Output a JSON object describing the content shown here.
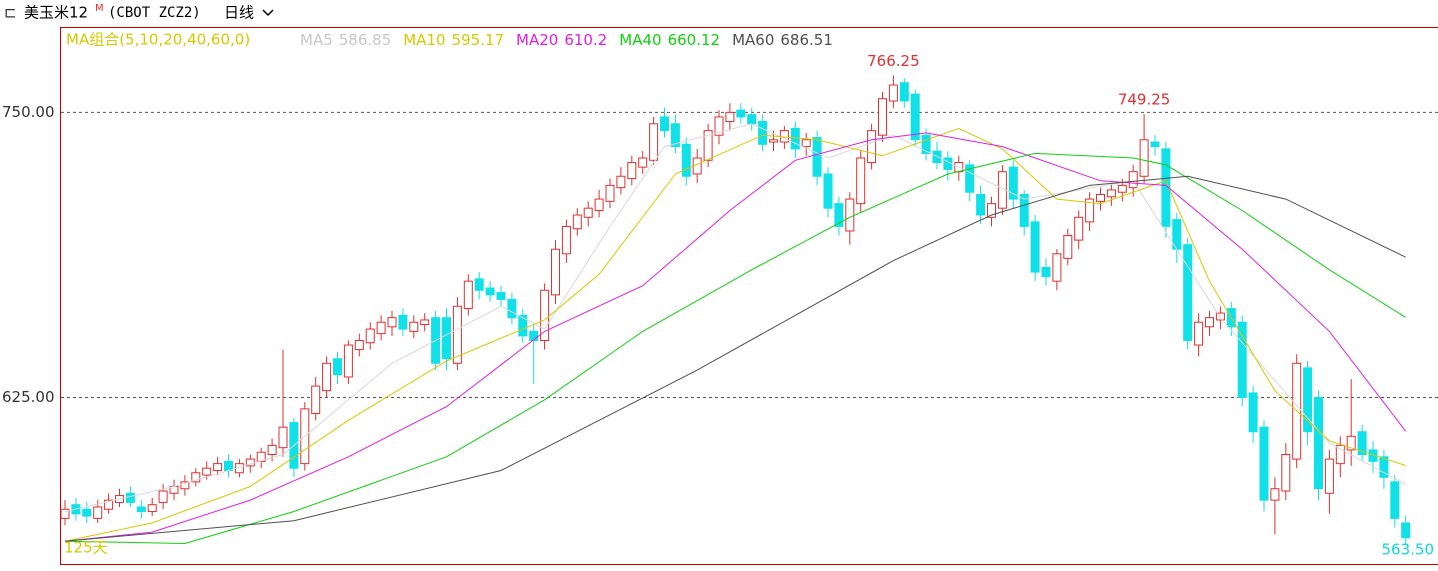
{
  "header": {
    "symbol": "美玉米12",
    "badge": "M",
    "code": "(CBOT ZCZ2)",
    "period": "日线"
  },
  "chart_data": {
    "type": "candlestick",
    "legend_title": "MA组合(5,10,20,40,60,0)",
    "ylim": [
      552,
      787
    ],
    "yticks": [
      {
        "value": 750,
        "label": "750.00"
      },
      {
        "value": 625,
        "label": "625.00"
      }
    ],
    "grid": true,
    "up_color": "#e03030",
    "down_color": "#10e0e8",
    "open": [
      572,
      578,
      576,
      572,
      576,
      579,
      583,
      577,
      575,
      579,
      583,
      585,
      588,
      591,
      593,
      597,
      592,
      595,
      597,
      600,
      603,
      614,
      596,
      618,
      628,
      642,
      634,
      646,
      649,
      653,
      656,
      661,
      654,
      657,
      660,
      660,
      640,
      664,
      677,
      673,
      671,
      668,
      661,
      654,
      650,
      670,
      688,
      699,
      704,
      707,
      711,
      717,
      721,
      726,
      729,
      748,
      745,
      736,
      723,
      729,
      740,
      746,
      751,
      749,
      746,
      737,
      737,
      743,
      735,
      739,
      723,
      710,
      698,
      710,
      728,
      740,
      755,
      763,
      758,
      740,
      733,
      730,
      724,
      727,
      714,
      704,
      708,
      726,
      714,
      702,
      682,
      676,
      686,
      694,
      702,
      711,
      713,
      715,
      717,
      722,
      737,
      734,
      703,
      692,
      648,
      656,
      659,
      664,
      658,
      627,
      612,
      580,
      584,
      598,
      638,
      625,
      583,
      596,
      602,
      610,
      602,
      599,
      588,
      570
    ],
    "high": [
      580,
      581,
      579,
      580,
      583,
      585,
      586,
      580,
      581,
      587,
      589,
      591,
      594,
      597,
      599,
      600,
      598,
      600,
      603,
      607,
      646,
      616,
      623,
      634,
      643,
      645,
      650,
      653,
      658,
      661,
      663,
      664,
      661,
      662,
      663,
      664,
      669,
      679,
      680,
      676,
      674,
      671,
      664,
      657,
      675,
      694,
      703,
      708,
      711,
      716,
      721,
      726,
      731,
      733,
      748,
      752,
      749,
      739,
      734,
      745,
      751,
      754,
      754,
      752,
      749,
      742,
      744,
      746,
      741,
      742,
      726,
      713,
      715,
      733,
      745,
      759,
      766.25,
      765,
      760,
      743,
      737,
      733,
      731,
      729,
      718,
      713,
      727,
      729,
      716,
      705,
      686,
      690,
      699,
      707,
      715,
      717,
      719,
      721,
      727,
      749.25,
      740,
      737,
      706,
      695,
      662,
      663,
      665,
      667,
      661,
      630,
      615,
      590,
      605,
      644,
      641,
      628,
      602,
      608,
      633,
      613,
      606,
      602,
      591,
      573
    ],
    "low": [
      569,
      571,
      570,
      570,
      574,
      577,
      577,
      572,
      573,
      576,
      580,
      582,
      586,
      589,
      591,
      590,
      590,
      592,
      594,
      597,
      599,
      590,
      593,
      615,
      625,
      631,
      631,
      643,
      646,
      650,
      652,
      652,
      651,
      654,
      637,
      637,
      637,
      661,
      668,
      667,
      665,
      657,
      649,
      631,
      646,
      666,
      684,
      696,
      700,
      704,
      708,
      714,
      718,
      723,
      727,
      739,
      732,
      718,
      719,
      726,
      736,
      742,
      745,
      742,
      733,
      733,
      734,
      730,
      731,
      718,
      704,
      696,
      692,
      706,
      725,
      737,
      752,
      752,
      735,
      729,
      725,
      720,
      720,
      711,
      701,
      700,
      705,
      708,
      696,
      676,
      674,
      672,
      683,
      690,
      698,
      707,
      709,
      711,
      713,
      719,
      731,
      695,
      684,
      646,
      643,
      652,
      655,
      652,
      621,
      605,
      575,
      565,
      580,
      594,
      604,
      580,
      574,
      590,
      595,
      597,
      592,
      585,
      568,
      560
    ],
    "close": [
      576,
      574,
      573,
      577,
      580,
      582,
      579,
      575,
      578,
      584,
      586,
      588,
      592,
      594,
      596,
      593,
      596,
      598,
      601,
      604,
      612,
      594,
      620,
      630,
      640,
      635,
      648,
      650,
      655,
      658,
      660,
      655,
      658,
      659,
      640,
      642,
      665,
      676,
      672,
      670,
      668,
      660,
      652,
      650,
      672,
      690,
      700,
      705,
      708,
      712,
      718,
      722,
      728,
      730,
      745,
      742,
      735,
      722,
      730,
      742,
      748,
      750,
      748,
      745,
      736,
      738,
      742,
      734,
      738,
      722,
      708,
      700,
      712,
      730,
      742,
      756,
      762,
      755,
      738,
      732,
      728,
      725,
      728,
      715,
      705,
      710,
      724,
      712,
      700,
      680,
      678,
      688,
      696,
      704,
      712,
      714,
      716,
      718,
      724,
      738,
      735,
      700,
      690,
      650,
      658,
      660,
      662,
      656,
      625,
      610,
      580,
      585,
      600,
      640,
      610,
      585,
      598,
      604,
      608,
      600,
      597,
      590,
      572,
      563.5
    ],
    "last_close_label": "563.50",
    "series": [
      {
        "name": "MA5",
        "color": "#d8d8d8",
        "x": [
          0,
          10,
          20,
          30,
          40,
          44,
          50,
          55,
          63,
          70,
          76,
          88,
          98,
          106,
          116,
          123
        ],
        "values": [
          575,
          586,
          600,
          640,
          665,
          655,
          700,
          735,
          745,
          730,
          740,
          712,
          720,
          660,
          605,
          586.85
        ]
      },
      {
        "name": "MA10",
        "color": "#d8c800",
        "x": [
          0,
          8,
          17,
          26,
          35,
          44,
          49,
          56,
          64,
          69,
          75,
          82,
          86,
          91,
          95,
          101,
          105,
          111,
          116,
          123
        ],
        "values": [
          562,
          570,
          586,
          615,
          641,
          659,
          679,
          723,
          740,
          738,
          731,
          743,
          734,
          712,
          710,
          720,
          676,
          628,
          606,
          595.17
        ]
      },
      {
        "name": "MA20",
        "color": "#e020e0",
        "x": [
          0,
          8,
          17,
          26,
          35,
          44,
          53,
          61,
          67,
          74,
          79,
          86,
          95,
          101,
          108,
          116,
          123
        ],
        "values": [
          562,
          566,
          580,
          599,
          621,
          654,
          674,
          707,
          729,
          738,
          741,
          735,
          720,
          718,
          690,
          654,
          610.2
        ]
      },
      {
        "name": "MA40",
        "color": "#10d010",
        "x": [
          0,
          11,
          21,
          35,
          44,
          53,
          63,
          72,
          81,
          89,
          98,
          101,
          108,
          116,
          123
        ],
        "values": [
          562,
          561,
          575,
          599,
          624,
          654,
          681,
          704,
          723,
          732,
          730,
          727,
          707,
          681,
          660.12
        ]
      },
      {
        "name": "MA60",
        "color": "#505050",
        "x": [
          0,
          21,
          40,
          58,
          76,
          85,
          94,
          103,
          112,
          123
        ],
        "values": [
          562,
          571,
          593,
          637,
          685,
          705,
          718,
          722,
          712,
          686.51
        ]
      }
    ],
    "high_labels": [
      76,
      99
    ],
    "span_label": "125天"
  }
}
